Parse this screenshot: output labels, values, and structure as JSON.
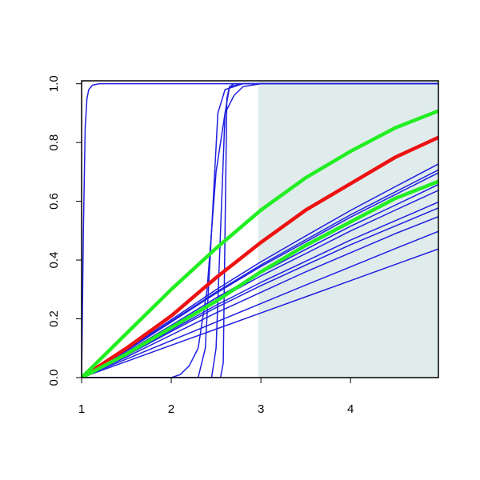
{
  "chart_data": {
    "type": "line",
    "xlim": [
      1,
      4.98
    ],
    "ylim": [
      0,
      1.01
    ],
    "xticks": [
      1,
      2,
      3,
      4
    ],
    "yticks": [
      {
        "value": 0,
        "label": "0.0"
      },
      0.2,
      0.4,
      0.6,
      0.8,
      {
        "value": 1,
        "label": "1.0"
      }
    ],
    "shaded_region": {
      "x": [
        2.97,
        4.98
      ],
      "color": "#e0ecec"
    },
    "series": [
      {
        "color": "#2020e0",
        "width": 1.5,
        "x": [
          1,
          1.5,
          2,
          2.5,
          3,
          3.5,
          4,
          4.5,
          5
        ],
        "values": [
          0,
          0.095,
          0.197,
          0.299,
          0.394,
          0.482,
          0.569,
          0.65,
          0.73
        ]
      },
      {
        "color": "#2020e0",
        "width": 1.5,
        "x": [
          1,
          1.5,
          2,
          2.5,
          3,
          3.5,
          4,
          4.5,
          5
        ],
        "values": [
          0,
          0.092,
          0.192,
          0.291,
          0.383,
          0.469,
          0.554,
          0.632,
          0.71
        ]
      },
      {
        "color": "#2020e0",
        "width": 1.5,
        "x": [
          1,
          1.5,
          2,
          2.5,
          3,
          3.5,
          4,
          4.5,
          5
        ],
        "values": [
          0,
          0.091,
          0.189,
          0.287,
          0.378,
          0.462,
          0.546,
          0.623,
          0.7
        ]
      },
      {
        "color": "#2020e0",
        "width": 1.5,
        "x": [
          1,
          1.5,
          2,
          2.5,
          3,
          3.5,
          4,
          4.5,
          5
        ],
        "values": [
          0,
          0.086,
          0.178,
          0.271,
          0.356,
          0.436,
          0.515,
          0.587,
          0.66
        ]
      },
      {
        "color": "#2020e0",
        "width": 1.5,
        "x": [
          1,
          1.5,
          2,
          2.5,
          3,
          3.5,
          4,
          4.5,
          5
        ],
        "values": [
          0,
          0.083,
          0.173,
          0.262,
          0.346,
          0.422,
          0.499,
          0.57,
          0.64
        ]
      },
      {
        "color": "#2020e0",
        "width": 1.5,
        "x": [
          1,
          1.5,
          2,
          2.5,
          3,
          3.5,
          4,
          4.5,
          5
        ],
        "values": [
          0,
          0.078,
          0.162,
          0.246,
          0.324,
          0.396,
          0.468,
          0.534,
          0.6
        ]
      },
      {
        "color": "#2020e0",
        "width": 1.5,
        "x": [
          1,
          1.5,
          2,
          2.5,
          3,
          3.5,
          4,
          4.5,
          5
        ],
        "values": [
          0,
          0.075,
          0.157,
          0.238,
          0.313,
          0.383,
          0.452,
          0.516,
          0.58
        ]
      },
      {
        "color": "#2020e0",
        "width": 1.5,
        "x": [
          1,
          1.5,
          2,
          2.5,
          3,
          3.5,
          4,
          4.5,
          5
        ],
        "values": [
          0,
          0.07,
          0.145,
          0.22,
          0.29,
          0.36,
          0.425,
          0.49,
          0.55
        ]
      },
      {
        "color": "#2020e0",
        "width": 1.5,
        "x": [
          1,
          1.5,
          2,
          2.5,
          3,
          3.5,
          4,
          4.5,
          5
        ],
        "values": [
          0,
          0.063,
          0.126,
          0.189,
          0.252,
          0.315,
          0.377,
          0.439,
          0.5
        ]
      },
      {
        "color": "#2020e0",
        "width": 1.5,
        "x": [
          1,
          1.5,
          2,
          2.5,
          3,
          3.5,
          4,
          4.5,
          5
        ],
        "values": [
          0,
          0.055,
          0.11,
          0.165,
          0.22,
          0.275,
          0.33,
          0.385,
          0.44
        ]
      },
      {
        "color": "#2020e0",
        "width": 1.5,
        "x": [
          1,
          1.02,
          1.04,
          1.06,
          1.08,
          1.12,
          1.2,
          5
        ],
        "values": [
          0,
          0.5,
          0.85,
          0.95,
          0.98,
          0.995,
          1,
          1
        ]
      },
      {
        "color": "#2020e0",
        "width": 1.5,
        "x": [
          1,
          2,
          2.1,
          2.2,
          2.3,
          2.4,
          2.5,
          2.6,
          2.7,
          2.8,
          3,
          5
        ],
        "values": [
          0,
          0,
          0.01,
          0.04,
          0.1,
          0.3,
          0.7,
          0.9,
          0.96,
          0.99,
          1,
          1
        ]
      },
      {
        "color": "#2020e0",
        "width": 1.5,
        "x": [
          1,
          2.3,
          2.38,
          2.45,
          2.52,
          2.6,
          2.8,
          5
        ],
        "values": [
          0,
          0,
          0.1,
          0.5,
          0.9,
          0.98,
          1,
          1
        ]
      },
      {
        "color": "#2020e0",
        "width": 1.5,
        "x": [
          1,
          2.45,
          2.5,
          2.55,
          2.6,
          2.65,
          2.8,
          5
        ],
        "values": [
          0,
          0,
          0.1,
          0.5,
          0.9,
          0.99,
          1,
          1
        ]
      },
      {
        "color": "#2020e0",
        "width": 1.5,
        "x": [
          1,
          2.55,
          2.58,
          2.6,
          2.62,
          2.65,
          2.7,
          5
        ],
        "values": [
          0,
          0,
          0.05,
          0.5,
          0.95,
          0.99,
          1,
          1
        ]
      },
      {
        "color": "#ee1111",
        "width": 4.5,
        "x": [
          1,
          1.5,
          2,
          2.5,
          3,
          3.5,
          4,
          4.5,
          5
        ],
        "values": [
          0,
          0.1,
          0.21,
          0.34,
          0.46,
          0.57,
          0.66,
          0.75,
          0.82
        ]
      },
      {
        "color": "#22ee22",
        "width": 4.5,
        "x": [
          1,
          1.5,
          2,
          2.5,
          3,
          3.5,
          4,
          4.5,
          5
        ],
        "values": [
          0,
          0.15,
          0.3,
          0.44,
          0.57,
          0.68,
          0.77,
          0.85,
          0.91
        ]
      },
      {
        "color": "#22ee22",
        "width": 4.5,
        "x": [
          1,
          1.5,
          2,
          2.5,
          3,
          3.5,
          4,
          4.5,
          5
        ],
        "values": [
          0,
          0.08,
          0.17,
          0.26,
          0.36,
          0.45,
          0.53,
          0.61,
          0.67
        ]
      }
    ]
  }
}
